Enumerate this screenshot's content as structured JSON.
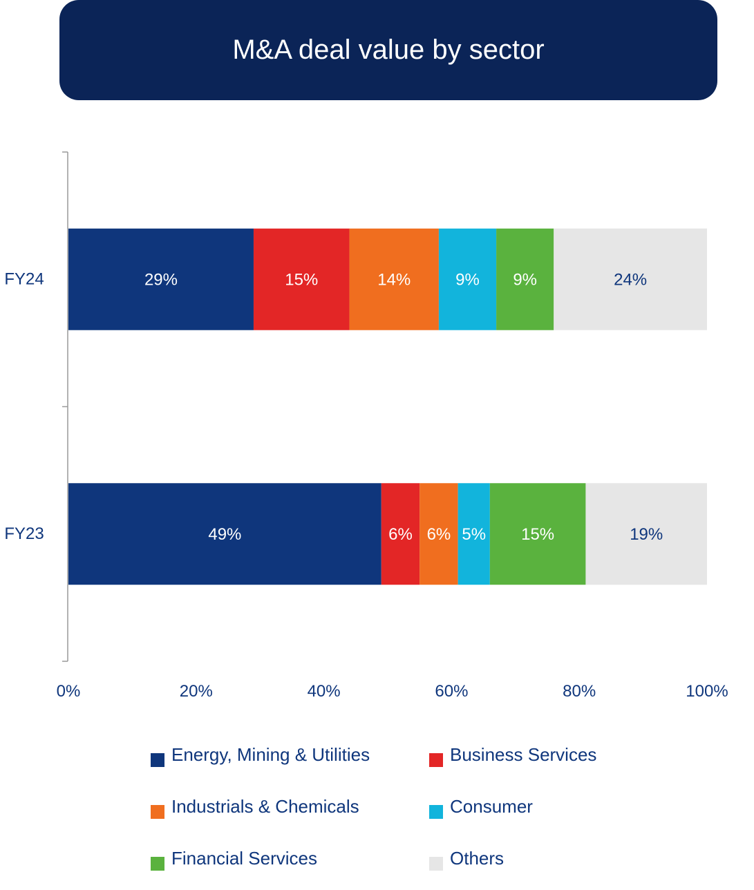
{
  "chart_data": {
    "type": "bar",
    "orientation": "horizontal",
    "stacked": true,
    "title": "M&A deal value by sector",
    "categories": [
      "FY24",
      "FY23"
    ],
    "series": [
      {
        "name": "Energy, Mining & Utilities",
        "color": "#0f367c",
        "label_color": "#ffffff",
        "values": [
          29,
          49
        ]
      },
      {
        "name": "Business Services",
        "color": "#e32626",
        "label_color": "#ffffff",
        "values": [
          15,
          6
        ]
      },
      {
        "name": "Industrials & Chemicals",
        "color": "#f06e1f",
        "label_color": "#ffffff",
        "values": [
          14,
          6
        ]
      },
      {
        "name": "Consumer",
        "color": "#12b4dc",
        "label_color": "#ffffff",
        "values": [
          9,
          5
        ]
      },
      {
        "name": "Financial Services",
        "color": "#5ab23e",
        "label_color": "#ffffff",
        "values": [
          9,
          15
        ]
      },
      {
        "name": "Others",
        "color": "#e6e6e6",
        "label_color": "#0f367c",
        "values": [
          24,
          19
        ]
      }
    ],
    "xlim": [
      0,
      100
    ],
    "xticks": [
      "0%",
      "20%",
      "40%",
      "60%",
      "80%",
      "100%"
    ],
    "value_suffix": "%",
    "grid": false,
    "legend_placement": "bottom"
  },
  "colors": {
    "title_bg": "#0b2457",
    "text": "#0f367c",
    "axis": "#999999"
  }
}
